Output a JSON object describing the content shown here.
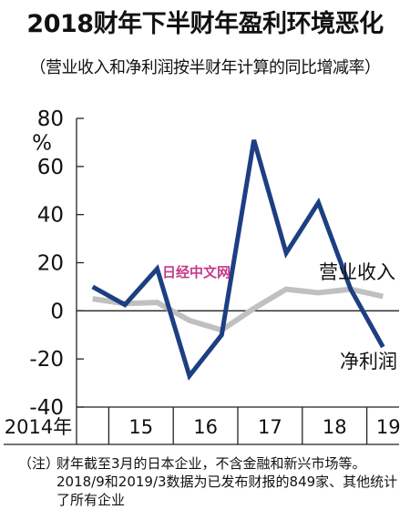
{
  "title": "2018财年下半财年盈利环境恶化",
  "subtitle": "（营业收入和净利润按半财年计算的同比增减率）",
  "watermark": "日经中文网",
  "note": {
    "tag": "（注）",
    "text": "财年截至3月的日本企业，不含金融和新兴市场等。2018/9和2019/3数据为已发布财报的849家、其他统计了所有企业"
  },
  "chart_data": {
    "type": "line",
    "ylabel": "%",
    "ylim": [
      -40,
      80
    ],
    "yticks": [
      80,
      60,
      40,
      20,
      0,
      -20,
      -40
    ],
    "xgroups": [
      "2014年",
      "15",
      "16",
      "17",
      "18",
      "19"
    ],
    "x": [
      "2014/9",
      "2015/3",
      "2015/9",
      "2016/3",
      "2016/9",
      "2017/3",
      "2017/9",
      "2018/3",
      "2018/9",
      "2019/3"
    ],
    "series": [
      {
        "name": "营业收入",
        "color": "#c0c0c0",
        "values": [
          5,
          3,
          3.5,
          -4,
          -8,
          1,
          9,
          7.5,
          9,
          6
        ]
      },
      {
        "name": "净利润",
        "color": "#1d3f82",
        "values": [
          10,
          2.5,
          17.5,
          -27,
          -10,
          71,
          24,
          45,
          9,
          -15
        ]
      }
    ]
  }
}
